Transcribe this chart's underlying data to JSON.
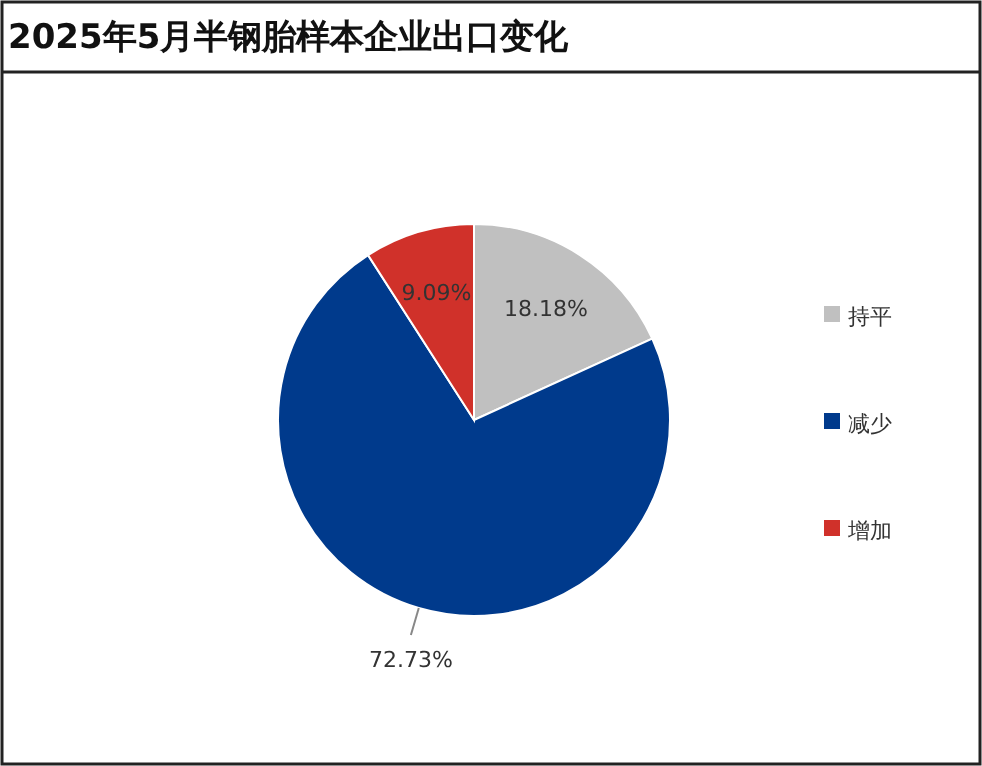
{
  "chart_data": {
    "type": "pie",
    "title": "2025年5月半钢胎样本企业出口变化",
    "categories": [
      "持平",
      "减少",
      "增加"
    ],
    "values": [
      18.18,
      72.73,
      9.09
    ],
    "colors": [
      "#c0c0c0",
      "#003a8c",
      "#d0312a"
    ],
    "value_labels": [
      "18.18%",
      "72.73%",
      "9.09%"
    ],
    "legend": "right"
  }
}
